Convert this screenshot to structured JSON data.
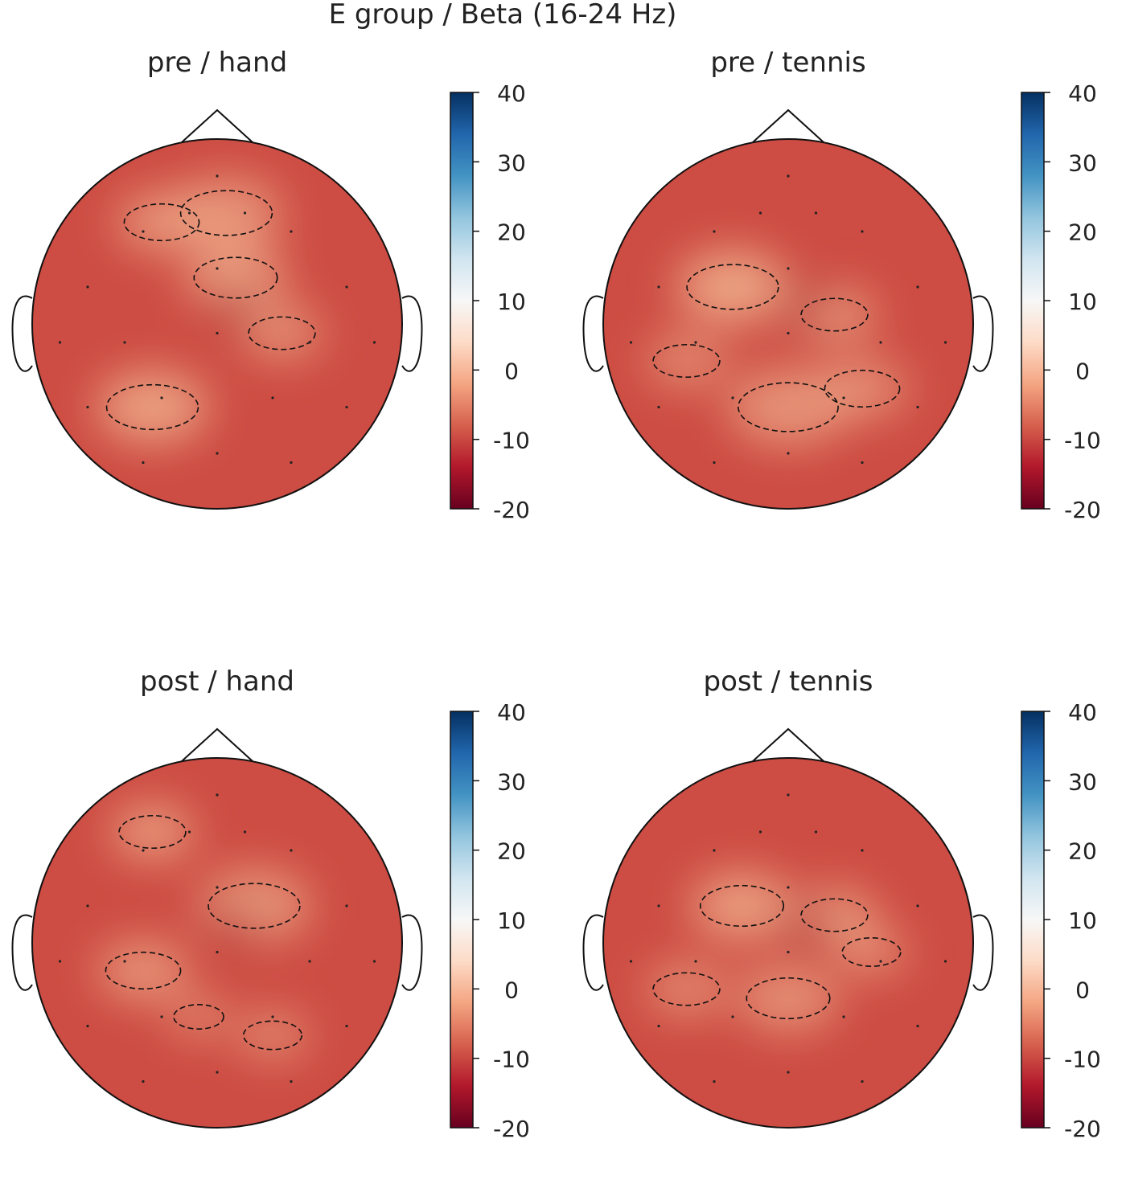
{
  "figure": {
    "title": "E group / Beta (16-24 Hz)"
  },
  "colormap": {
    "name": "RdBu",
    "stops": [
      "#67001f",
      "#b2182b",
      "#d6604d",
      "#f4a582",
      "#fddbc7",
      "#f7f7f7",
      "#d1e5f0",
      "#92c5de",
      "#4393c3",
      "#2166ac",
      "#053061"
    ],
    "vmin": -20,
    "vmax": 40
  },
  "chart_data": [
    {
      "type": "heatmap",
      "subtype": "topographic-map",
      "title": "pre / hand",
      "colorbar": {
        "range": [
          -20,
          40
        ],
        "ticks": [
          "40",
          "30",
          "20",
          "10",
          "0",
          "-10",
          "-20"
        ]
      },
      "estimated_range": [
        -17,
        3
      ],
      "contour_levels": [
        -15,
        -10,
        -5,
        0
      ]
    },
    {
      "type": "heatmap",
      "subtype": "topographic-map",
      "title": "pre / tennis",
      "colorbar": {
        "range": [
          -20,
          40
        ],
        "ticks": [
          "40",
          "30",
          "20",
          "10",
          "0",
          "-10",
          "-20"
        ]
      },
      "estimated_range": [
        -17,
        3
      ],
      "contour_levels": [
        -15,
        -10,
        -5,
        0
      ]
    },
    {
      "type": "heatmap",
      "subtype": "topographic-map",
      "title": "post / hand",
      "colorbar": {
        "range": [
          -20,
          40
        ],
        "ticks": [
          "40",
          "30",
          "20",
          "10",
          "0",
          "-10",
          "-20"
        ]
      },
      "estimated_range": [
        -17,
        2
      ],
      "contour_levels": [
        -15,
        -10,
        -5,
        0
      ]
    },
    {
      "type": "heatmap",
      "subtype": "topographic-map",
      "title": "post / tennis",
      "colorbar": {
        "range": [
          -20,
          40
        ],
        "ticks": [
          "40",
          "30",
          "20",
          "10",
          "0",
          "-10",
          "-20"
        ]
      },
      "estimated_range": [
        -17,
        2
      ],
      "contour_levels": [
        -15,
        -10,
        -5,
        0
      ]
    }
  ]
}
